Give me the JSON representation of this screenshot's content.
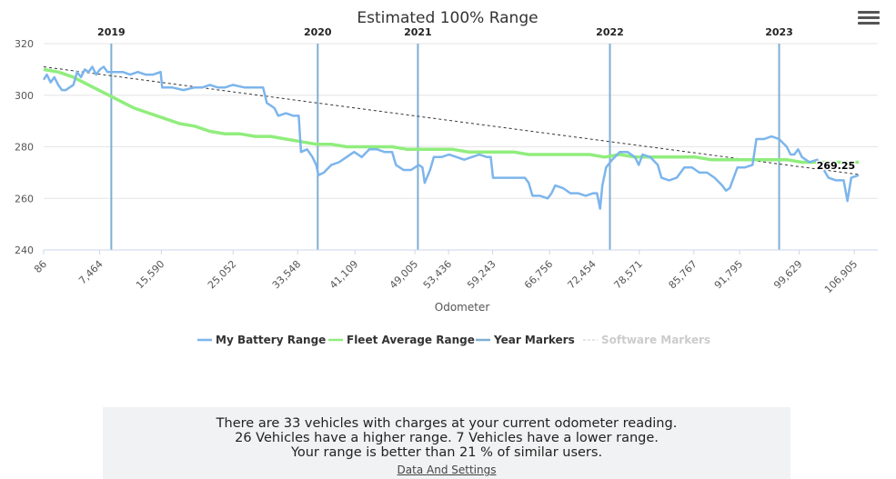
{
  "chart_data": {
    "type": "line",
    "title": "Estimated 100% Range",
    "xlabel": "Odometer",
    "ylabel": "",
    "ylim": [
      240,
      320
    ],
    "xlim": [
      86,
      110000
    ],
    "yticks": [
      240,
      260,
      280,
      300,
      320
    ],
    "xticks": [
      {
        "value": 86,
        "label": "86"
      },
      {
        "value": 7464,
        "label": "7,464"
      },
      {
        "value": 15590,
        "label": "15,590"
      },
      {
        "value": 25052,
        "label": "25,052"
      },
      {
        "value": 33548,
        "label": "33,548"
      },
      {
        "value": 41109,
        "label": "41,109"
      },
      {
        "value": 49005,
        "label": "49,005"
      },
      {
        "value": 53436,
        "label": "53,436"
      },
      {
        "value": 59243,
        "label": "59,243"
      },
      {
        "value": 66756,
        "label": "66,756"
      },
      {
        "value": 72454,
        "label": "72,454"
      },
      {
        "value": 78571,
        "label": "78,571"
      },
      {
        "value": 85767,
        "label": "85,767"
      },
      {
        "value": 91795,
        "label": "91,795"
      },
      {
        "value": 99629,
        "label": "99,629"
      },
      {
        "value": 106905,
        "label": "106,905"
      }
    ],
    "year_markers": [
      {
        "label": "2019",
        "x": 9000
      },
      {
        "label": "2020",
        "x": 36200
      },
      {
        "label": "2021",
        "x": 49400
      },
      {
        "label": "2022",
        "x": 74700
      },
      {
        "label": "2023",
        "x": 97000
      }
    ],
    "series": [
      {
        "name": "My Battery Range",
        "color": "#7cb5ec",
        "points": [
          [
            86,
            306
          ],
          [
            500,
            308
          ],
          [
            1000,
            305
          ],
          [
            1500,
            307
          ],
          [
            2000,
            304
          ],
          [
            2500,
            302
          ],
          [
            3000,
            302
          ],
          [
            3500,
            303
          ],
          [
            4000,
            304
          ],
          [
            4500,
            309
          ],
          [
            5000,
            307
          ],
          [
            5500,
            310
          ],
          [
            6000,
            309
          ],
          [
            6500,
            311
          ],
          [
            7000,
            308
          ],
          [
            7500,
            310
          ],
          [
            8000,
            311
          ],
          [
            8500,
            309
          ],
          [
            9500,
            309
          ],
          [
            10500,
            309
          ],
          [
            11500,
            308
          ],
          [
            12500,
            309
          ],
          [
            13500,
            308
          ],
          [
            14500,
            308
          ],
          [
            15500,
            309
          ],
          [
            15700,
            303
          ],
          [
            17000,
            303
          ],
          [
            18500,
            302
          ],
          [
            20000,
            303
          ],
          [
            21000,
            303
          ],
          [
            22000,
            304
          ],
          [
            23000,
            303
          ],
          [
            24000,
            303
          ],
          [
            25000,
            304
          ],
          [
            26500,
            303
          ],
          [
            28000,
            303
          ],
          [
            29000,
            303
          ],
          [
            29500,
            297
          ],
          [
            30500,
            295
          ],
          [
            31000,
            292
          ],
          [
            32000,
            293
          ],
          [
            33000,
            292
          ],
          [
            33700,
            292
          ],
          [
            34000,
            278
          ],
          [
            34800,
            279
          ],
          [
            35500,
            276
          ],
          [
            36000,
            273
          ],
          [
            36300,
            269
          ],
          [
            37000,
            270
          ],
          [
            38000,
            273
          ],
          [
            39000,
            274
          ],
          [
            40000,
            276
          ],
          [
            41000,
            278
          ],
          [
            42000,
            276
          ],
          [
            43000,
            279
          ],
          [
            44000,
            279
          ],
          [
            45000,
            278
          ],
          [
            46000,
            278
          ],
          [
            46500,
            273
          ],
          [
            47500,
            271
          ],
          [
            48500,
            271
          ],
          [
            49500,
            273
          ],
          [
            50000,
            272
          ],
          [
            50300,
            266
          ],
          [
            51000,
            271
          ],
          [
            51500,
            276
          ],
          [
            52500,
            276
          ],
          [
            53500,
            277
          ],
          [
            54500,
            276
          ],
          [
            55500,
            275
          ],
          [
            56500,
            276
          ],
          [
            57500,
            277
          ],
          [
            58500,
            276
          ],
          [
            59000,
            276
          ],
          [
            59300,
            268
          ],
          [
            60500,
            268
          ],
          [
            61500,
            268
          ],
          [
            62500,
            268
          ],
          [
            63500,
            268
          ],
          [
            64000,
            266
          ],
          [
            64500,
            261
          ],
          [
            65500,
            261
          ],
          [
            66500,
            260
          ],
          [
            67000,
            262
          ],
          [
            67500,
            265
          ],
          [
            68500,
            264
          ],
          [
            69500,
            262
          ],
          [
            70500,
            262
          ],
          [
            71500,
            261
          ],
          [
            72500,
            262
          ],
          [
            73000,
            262
          ],
          [
            73400,
            256
          ],
          [
            73700,
            265
          ],
          [
            74200,
            272
          ],
          [
            75000,
            275
          ],
          [
            76000,
            278
          ],
          [
            77000,
            278
          ],
          [
            78000,
            276
          ],
          [
            78500,
            273
          ],
          [
            79000,
            277
          ],
          [
            80000,
            276
          ],
          [
            81000,
            273
          ],
          [
            81500,
            268
          ],
          [
            82500,
            267
          ],
          [
            83500,
            268
          ],
          [
            84500,
            272
          ],
          [
            85500,
            272
          ],
          [
            86500,
            270
          ],
          [
            87500,
            270
          ],
          [
            88500,
            268
          ],
          [
            89500,
            265
          ],
          [
            90000,
            263
          ],
          [
            90500,
            264
          ],
          [
            91500,
            272
          ],
          [
            92500,
            272
          ],
          [
            93500,
            273
          ],
          [
            94000,
            283
          ],
          [
            95000,
            283
          ],
          [
            96000,
            284
          ],
          [
            97000,
            283
          ],
          [
            98000,
            280
          ],
          [
            98500,
            277
          ],
          [
            99000,
            277
          ],
          [
            99500,
            279
          ],
          [
            100000,
            276
          ],
          [
            101000,
            274
          ],
          [
            102000,
            275
          ],
          [
            102500,
            273
          ],
          [
            103500,
            268
          ],
          [
            104500,
            267
          ],
          [
            105500,
            267
          ],
          [
            106000,
            259
          ],
          [
            106500,
            268
          ],
          [
            107500,
            269
          ]
        ]
      },
      {
        "name": "Fleet Average Range",
        "color": "#90ed7d",
        "points": [
          [
            86,
            310
          ],
          [
            2000,
            309
          ],
          [
            4000,
            307
          ],
          [
            6000,
            304
          ],
          [
            8000,
            301
          ],
          [
            10000,
            298
          ],
          [
            12000,
            295
          ],
          [
            14000,
            293
          ],
          [
            16000,
            291
          ],
          [
            18000,
            289
          ],
          [
            20000,
            288
          ],
          [
            22000,
            286
          ],
          [
            24000,
            285
          ],
          [
            26000,
            285
          ],
          [
            28000,
            284
          ],
          [
            30000,
            284
          ],
          [
            32000,
            283
          ],
          [
            34000,
            282
          ],
          [
            36000,
            281
          ],
          [
            38000,
            281
          ],
          [
            40000,
            280
          ],
          [
            42000,
            280
          ],
          [
            44000,
            280
          ],
          [
            46000,
            280
          ],
          [
            48000,
            279
          ],
          [
            50000,
            279
          ],
          [
            52000,
            279
          ],
          [
            54000,
            279
          ],
          [
            56000,
            278
          ],
          [
            58000,
            278
          ],
          [
            60000,
            278
          ],
          [
            62000,
            278
          ],
          [
            64000,
            277
          ],
          [
            66000,
            277
          ],
          [
            68000,
            277
          ],
          [
            70000,
            277
          ],
          [
            72000,
            277
          ],
          [
            74000,
            276
          ],
          [
            76000,
            277
          ],
          [
            78000,
            276
          ],
          [
            80000,
            276
          ],
          [
            82000,
            276
          ],
          [
            84000,
            276
          ],
          [
            86000,
            276
          ],
          [
            88000,
            275
          ],
          [
            90000,
            275
          ],
          [
            92000,
            275
          ],
          [
            94000,
            275
          ],
          [
            96000,
            275
          ],
          [
            98000,
            275
          ],
          [
            100000,
            274
          ],
          [
            102000,
            274
          ],
          [
            104000,
            274
          ],
          [
            106000,
            274
          ],
          [
            107500,
            274
          ]
        ]
      },
      {
        "name": "Year Markers",
        "color": "#7fafd1"
      },
      {
        "name": "Software Markers",
        "color": "#cccccc"
      }
    ],
    "trend_line": {
      "from": [
        86,
        311
      ],
      "to": [
        107500,
        269.25
      ]
    },
    "end_label": "269.25",
    "legend_position": "bottom-center",
    "grid": true
  },
  "summary": {
    "line1": "There are 33 vehicles with charges at your current odometer reading.",
    "line2": "26 Vehicles have a higher range. 7 Vehicles have a lower range.",
    "line3": "Your range is better than 21 % of similar users.",
    "link": "Data And Settings"
  }
}
